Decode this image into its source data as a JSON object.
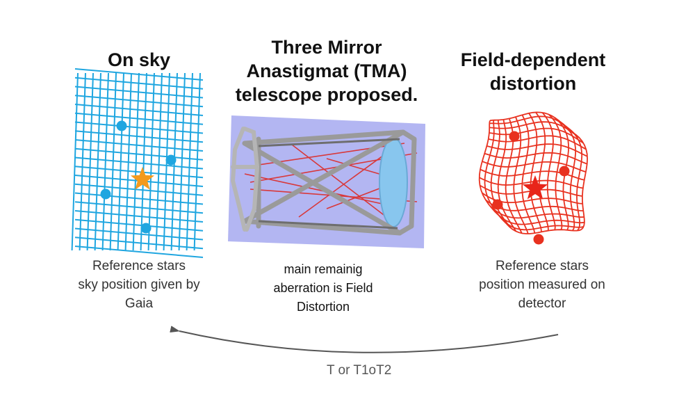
{
  "panels": {
    "sky": {
      "title": "On sky",
      "caption_lines": [
        "Reference stars",
        "sky position given by",
        "Gaia"
      ],
      "grid_color": "#1fa6e0",
      "star_color": "#f39a1e",
      "dot_color": "#1fa6e0"
    },
    "telescope": {
      "title_lines": [
        "Three Mirror",
        "Anastigmat (TMA)",
        "telescope proposed."
      ],
      "caption_lines": [
        "main remainig",
        "aberration is Field",
        "Distortion"
      ],
      "background_color": "#b3b6f2"
    },
    "distortion": {
      "title_lines": [
        "Field-dependent",
        "distortion"
      ],
      "caption_lines": [
        "Reference stars",
        "position measured on",
        "detector"
      ],
      "grid_color": "#e8311f",
      "star_color": "#e8251a",
      "dot_color": "#e8311f"
    }
  },
  "arrow": {
    "label": "T or T1oT2",
    "color": "#555555"
  }
}
